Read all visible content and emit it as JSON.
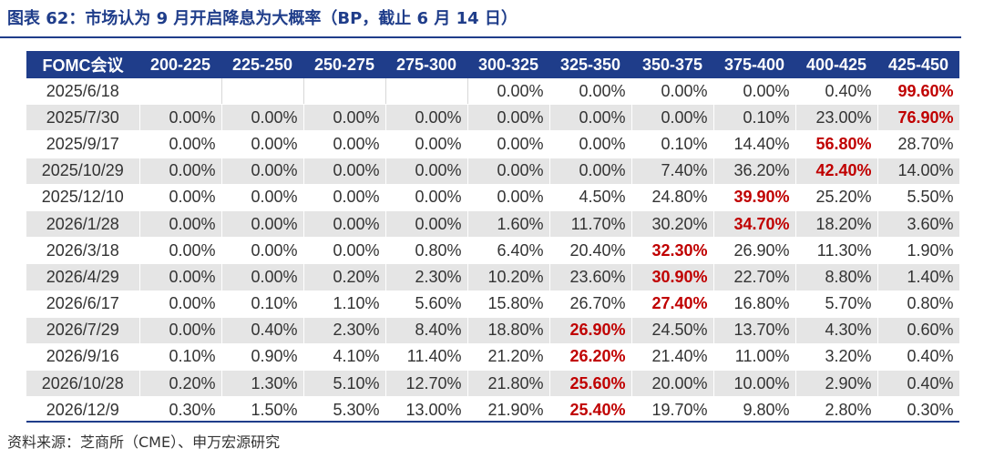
{
  "title": "图表 62：市场认为 9 月开启降息为大概率（BP，截止 6 月 14 日）",
  "source": "资料来源：芝商所（CME）、申万宏源研究",
  "colors": {
    "header_bg": "#1f3d8a",
    "highlight": "#c00000",
    "stripe": "#e5e5e5"
  },
  "table": {
    "headers": [
      "FOMC会议",
      "200-225",
      "225-250",
      "250-275",
      "275-300",
      "300-325",
      "325-350",
      "350-375",
      "375-400",
      "400-425",
      "425-450"
    ],
    "rows": [
      {
        "date": "2025/6/18",
        "values": [
          "",
          "",
          "",
          "",
          "0.00%",
          "0.00%",
          "0.00%",
          "0.00%",
          "0.40%",
          "99.60%"
        ],
        "highlight": 9
      },
      {
        "date": "2025/7/30",
        "values": [
          "0.00%",
          "0.00%",
          "0.00%",
          "0.00%",
          "0.00%",
          "0.00%",
          "0.00%",
          "0.10%",
          "23.00%",
          "76.90%"
        ],
        "highlight": 9
      },
      {
        "date": "2025/9/17",
        "values": [
          "0.00%",
          "0.00%",
          "0.00%",
          "0.00%",
          "0.00%",
          "0.00%",
          "0.10%",
          "14.40%",
          "56.80%",
          "28.70%"
        ],
        "highlight": 8
      },
      {
        "date": "2025/10/29",
        "values": [
          "0.00%",
          "0.00%",
          "0.00%",
          "0.00%",
          "0.00%",
          "0.00%",
          "7.40%",
          "36.20%",
          "42.40%",
          "14.00%"
        ],
        "highlight": 8
      },
      {
        "date": "2025/12/10",
        "values": [
          "0.00%",
          "0.00%",
          "0.00%",
          "0.00%",
          "0.00%",
          "4.50%",
          "24.80%",
          "39.90%",
          "25.20%",
          "5.50%"
        ],
        "highlight": 7
      },
      {
        "date": "2026/1/28",
        "values": [
          "0.00%",
          "0.00%",
          "0.00%",
          "0.00%",
          "1.60%",
          "11.70%",
          "30.20%",
          "34.70%",
          "18.20%",
          "3.60%"
        ],
        "highlight": 7
      },
      {
        "date": "2026/3/18",
        "values": [
          "0.00%",
          "0.00%",
          "0.00%",
          "0.80%",
          "6.40%",
          "20.40%",
          "32.30%",
          "26.90%",
          "11.30%",
          "1.90%"
        ],
        "highlight": 6
      },
      {
        "date": "2026/4/29",
        "values": [
          "0.00%",
          "0.00%",
          "0.20%",
          "2.30%",
          "10.20%",
          "23.60%",
          "30.90%",
          "22.70%",
          "8.80%",
          "1.40%"
        ],
        "highlight": 6
      },
      {
        "date": "2026/6/17",
        "values": [
          "0.00%",
          "0.10%",
          "1.10%",
          "5.60%",
          "15.80%",
          "26.70%",
          "27.40%",
          "16.80%",
          "5.70%",
          "0.80%"
        ],
        "highlight": 6
      },
      {
        "date": "2026/7/29",
        "values": [
          "0.00%",
          "0.40%",
          "2.30%",
          "8.40%",
          "18.80%",
          "26.90%",
          "24.50%",
          "13.70%",
          "4.30%",
          "0.60%"
        ],
        "highlight": 5
      },
      {
        "date": "2026/9/16",
        "values": [
          "0.10%",
          "0.90%",
          "4.10%",
          "11.40%",
          "21.20%",
          "26.20%",
          "21.40%",
          "11.00%",
          "3.20%",
          "0.40%"
        ],
        "highlight": 5
      },
      {
        "date": "2026/10/28",
        "values": [
          "0.20%",
          "1.30%",
          "5.10%",
          "12.70%",
          "21.80%",
          "25.60%",
          "20.00%",
          "10.00%",
          "2.90%",
          "0.40%"
        ],
        "highlight": 5
      },
      {
        "date": "2026/12/9",
        "values": [
          "0.30%",
          "1.50%",
          "5.30%",
          "13.00%",
          "21.90%",
          "25.40%",
          "19.70%",
          "9.80%",
          "2.80%",
          "0.30%"
        ],
        "highlight": 5
      }
    ]
  }
}
